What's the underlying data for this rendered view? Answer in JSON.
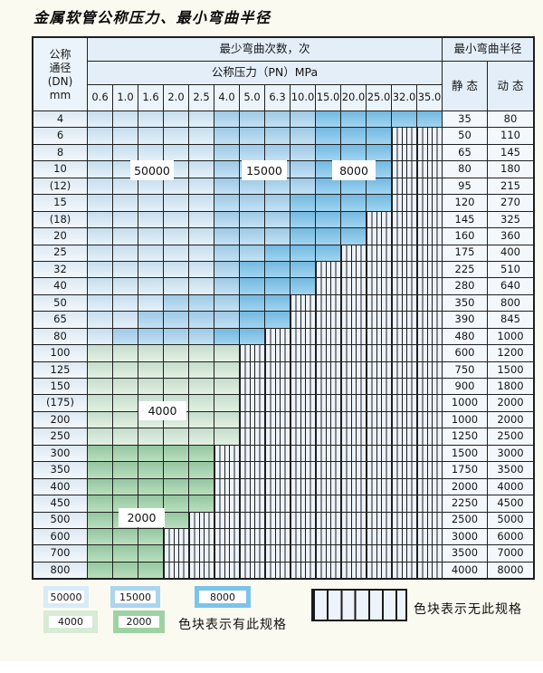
{
  "title": "金属软管公称压力、最小弯曲半径",
  "palette": {
    "50000": "#d8ebf8",
    "15000": "#abd5ef",
    "8000": "#7cc3ea",
    "4000": "#d7ebd5",
    "2000": "#9fd2a3",
    "hatch_bg": "#edf3fa",
    "grid_line": "#1f1f1f"
  },
  "table": {
    "header": {
      "dn_lines": [
        "公称",
        "通径",
        "(DN)",
        "mm"
      ],
      "bend_times_label": "最少弯曲次数，次",
      "pressure_label": "公称压力（PN）MPa",
      "pressure_values": [
        "0.6",
        "1.0",
        "1.6",
        "2.0",
        "2.5",
        "4.0",
        "5.0",
        "6.3",
        "10.0",
        "15.0",
        "20.0",
        "25.0",
        "32.0",
        "35.0"
      ],
      "radius_label": "最小弯曲半径",
      "static_label": "静 态",
      "dynamic_label": "动 态"
    },
    "rows": [
      {
        "dn": "4",
        "static": "35",
        "dynamic": "80",
        "segments": [
          [
            "50000",
            5
          ],
          [
            "15000",
            4
          ],
          [
            "8000",
            5
          ]
        ]
      },
      {
        "dn": "6",
        "static": "50",
        "dynamic": "110",
        "segments": [
          [
            "50000",
            5
          ],
          [
            "15000",
            4
          ],
          [
            "8000",
            3
          ],
          [
            "none",
            2
          ]
        ]
      },
      {
        "dn": "8",
        "static": "65",
        "dynamic": "145",
        "segments": [
          [
            "50000",
            5
          ],
          [
            "15000",
            4
          ],
          [
            "8000",
            3
          ],
          [
            "none",
            2
          ]
        ]
      },
      {
        "dn": "10",
        "static": "80",
        "dynamic": "180",
        "segments": [
          [
            "50000",
            5
          ],
          [
            "15000",
            4
          ],
          [
            "8000",
            3
          ],
          [
            "none",
            2
          ]
        ]
      },
      {
        "dn": "(12)",
        "static": "95",
        "dynamic": "215",
        "segments": [
          [
            "50000",
            5
          ],
          [
            "15000",
            4
          ],
          [
            "8000",
            3
          ],
          [
            "none",
            2
          ]
        ]
      },
      {
        "dn": "15",
        "static": "120",
        "dynamic": "270",
        "segments": [
          [
            "50000",
            5
          ],
          [
            "15000",
            3
          ],
          [
            "8000",
            4
          ],
          [
            "none",
            2
          ]
        ]
      },
      {
        "dn": "(18)",
        "static": "145",
        "dynamic": "325",
        "segments": [
          [
            "50000",
            5
          ],
          [
            "15000",
            3
          ],
          [
            "8000",
            3
          ],
          [
            "none",
            3
          ]
        ]
      },
      {
        "dn": "20",
        "static": "160",
        "dynamic": "360",
        "segments": [
          [
            "50000",
            5
          ],
          [
            "15000",
            3
          ],
          [
            "8000",
            3
          ],
          [
            "none",
            3
          ]
        ]
      },
      {
        "dn": "25",
        "static": "175",
        "dynamic": "400",
        "segments": [
          [
            "50000",
            5
          ],
          [
            "15000",
            2
          ],
          [
            "8000",
            3
          ],
          [
            "none",
            4
          ]
        ]
      },
      {
        "dn": "32",
        "static": "225",
        "dynamic": "510",
        "segments": [
          [
            "50000",
            5
          ],
          [
            "15000",
            1
          ],
          [
            "8000",
            3
          ],
          [
            "none",
            5
          ]
        ]
      },
      {
        "dn": "40",
        "static": "280",
        "dynamic": "640",
        "segments": [
          [
            "50000",
            5
          ],
          [
            "15000",
            1
          ],
          [
            "8000",
            3
          ],
          [
            "none",
            5
          ]
        ]
      },
      {
        "dn": "50",
        "static": "350",
        "dynamic": "800",
        "segments": [
          [
            "50000",
            3
          ],
          [
            "15000",
            3
          ],
          [
            "8000",
            2
          ],
          [
            "none",
            6
          ]
        ]
      },
      {
        "dn": "65",
        "static": "390",
        "dynamic": "845",
        "segments": [
          [
            "50000",
            2
          ],
          [
            "15000",
            4
          ],
          [
            "8000",
            2
          ],
          [
            "none",
            6
          ]
        ]
      },
      {
        "dn": "80",
        "static": "480",
        "dynamic": "1000",
        "segments": [
          [
            "50000",
            1
          ],
          [
            "15000",
            4
          ],
          [
            "8000",
            2
          ],
          [
            "none",
            7
          ]
        ]
      },
      {
        "dn": "100",
        "static": "600",
        "dynamic": "1200",
        "segments": [
          [
            "4000",
            6
          ],
          [
            "none",
            8
          ]
        ]
      },
      {
        "dn": "125",
        "static": "750",
        "dynamic": "1500",
        "segments": [
          [
            "4000",
            6
          ],
          [
            "none",
            8
          ]
        ]
      },
      {
        "dn": "150",
        "static": "900",
        "dynamic": "1800",
        "segments": [
          [
            "4000",
            6
          ],
          [
            "none",
            8
          ]
        ]
      },
      {
        "dn": "(175)",
        "static": "1000",
        "dynamic": "2000",
        "segments": [
          [
            "4000",
            6
          ],
          [
            "none",
            8
          ]
        ]
      },
      {
        "dn": "200",
        "static": "1000",
        "dynamic": "2000",
        "segments": [
          [
            "4000",
            6
          ],
          [
            "none",
            8
          ]
        ]
      },
      {
        "dn": "250",
        "static": "1250",
        "dynamic": "2500",
        "segments": [
          [
            "4000",
            6
          ],
          [
            "none",
            8
          ]
        ]
      },
      {
        "dn": "300",
        "static": "1500",
        "dynamic": "3000",
        "segments": [
          [
            "2000",
            5
          ],
          [
            "none",
            9
          ]
        ]
      },
      {
        "dn": "350",
        "static": "1750",
        "dynamic": "3500",
        "segments": [
          [
            "2000",
            5
          ],
          [
            "none",
            9
          ]
        ]
      },
      {
        "dn": "400",
        "static": "2000",
        "dynamic": "4000",
        "segments": [
          [
            "2000",
            5
          ],
          [
            "none",
            9
          ]
        ]
      },
      {
        "dn": "450",
        "static": "2250",
        "dynamic": "4500",
        "segments": [
          [
            "2000",
            5
          ],
          [
            "none",
            9
          ]
        ]
      },
      {
        "dn": "500",
        "static": "2500",
        "dynamic": "5000",
        "segments": [
          [
            "2000",
            4
          ],
          [
            "none",
            10
          ]
        ]
      },
      {
        "dn": "600",
        "static": "3000",
        "dynamic": "6000",
        "segments": [
          [
            "2000",
            3
          ],
          [
            "none",
            11
          ]
        ]
      },
      {
        "dn": "700",
        "static": "3500",
        "dynamic": "7000",
        "segments": [
          [
            "2000",
            3
          ],
          [
            "none",
            11
          ]
        ]
      },
      {
        "dn": "800",
        "static": "4000",
        "dynamic": "8000",
        "segments": [
          [
            "2000",
            3
          ],
          [
            "none",
            11
          ]
        ]
      }
    ]
  },
  "region_labels": {
    "l50000": "50000",
    "l15000": "15000",
    "l8000": "8000",
    "l4000": "4000",
    "l2000": "2000"
  },
  "legend": {
    "items": [
      {
        "label": "50000",
        "band": "50000"
      },
      {
        "label": "15000",
        "band": "15000"
      },
      {
        "label": "8000",
        "band": "8000"
      },
      {
        "label": "4000",
        "band": "4000"
      },
      {
        "label": "2000",
        "band": "2000"
      }
    ],
    "available_text": "色块表示有此规格",
    "unavailable_text": "色块表示无此规格"
  }
}
